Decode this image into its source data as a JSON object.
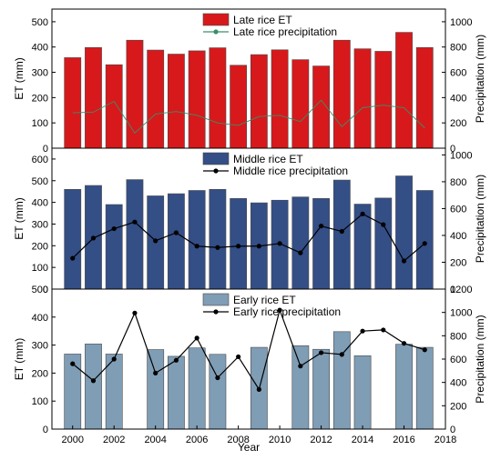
{
  "chart_data": [
    {
      "type": "bar+line",
      "panel": "late",
      "x": [
        2000,
        2001,
        2002,
        2003,
        2004,
        2005,
        2006,
        2007,
        2008,
        2009,
        2010,
        2011,
        2012,
        2013,
        2014,
        2015,
        2016,
        2017
      ],
      "series": [
        {
          "name": "Late rice ET",
          "kind": "bar",
          "axis": "left",
          "values": [
            358,
            398,
            330,
            427,
            388,
            372,
            385,
            397,
            328,
            370,
            389,
            350,
            325,
            427,
            393,
            383,
            458,
            398
          ],
          "color": "#d7191c"
        },
        {
          "name": "Late rice precipitation",
          "kind": "line",
          "axis": "right",
          "values": [
            280,
            285,
            370,
            120,
            270,
            290,
            260,
            200,
            180,
            250,
            260,
            210,
            380,
            170,
            320,
            340,
            320,
            160
          ],
          "color": "#3a8f6a"
        }
      ],
      "ylabel": "ET (mm)",
      "ylim": [
        0,
        550
      ],
      "yticks": [
        0,
        100,
        200,
        300,
        400,
        500
      ],
      "y2label": "Precipitation (mm)",
      "y2lim": [
        0,
        1100
      ],
      "y2ticks": [
        0,
        200,
        400,
        600,
        800,
        1000
      ],
      "legend": "top-center"
    },
    {
      "type": "bar+line",
      "panel": "middle",
      "x": [
        2000,
        2001,
        2002,
        2003,
        2004,
        2005,
        2006,
        2007,
        2008,
        2009,
        2010,
        2011,
        2012,
        2013,
        2014,
        2015,
        2016,
        2017
      ],
      "series": [
        {
          "name": "Middle rice ET",
          "kind": "bar",
          "axis": "left",
          "values": [
            460,
            478,
            390,
            505,
            430,
            440,
            455,
            460,
            418,
            398,
            410,
            425,
            418,
            503,
            392,
            420,
            522,
            455
          ],
          "color": "#344e86"
        },
        {
          "name": "Middle rice precipitation",
          "kind": "line",
          "axis": "right",
          "values": [
            230,
            380,
            450,
            500,
            360,
            420,
            320,
            310,
            320,
            320,
            340,
            270,
            470,
            430,
            560,
            480,
            210,
            340
          ],
          "color": "#000000"
        }
      ],
      "ylabel": "ET (mm)",
      "ylim": [
        0,
        650
      ],
      "yticks": [
        0,
        100,
        200,
        300,
        400,
        500,
        600
      ],
      "y2label": "Precipitation (mm)",
      "y2lim": [
        0,
        1050
      ],
      "y2ticks": [
        0,
        200,
        400,
        600,
        800,
        1000
      ],
      "legend": "top-center"
    },
    {
      "type": "bar+line",
      "panel": "early",
      "x": [
        2000,
        2001,
        2002,
        2003,
        2004,
        2005,
        2006,
        2007,
        2008,
        2009,
        2010,
        2011,
        2012,
        2013,
        2014,
        2015,
        2016,
        2017
      ],
      "series": [
        {
          "name": "Early rice ET",
          "kind": "bar",
          "axis": "left",
          "values": [
            268,
            304,
            268,
            null,
            284,
            260,
            290,
            267,
            null,
            292,
            null,
            298,
            285,
            348,
            262,
            null,
            303,
            292
          ],
          "color": "#7f9db5"
        },
        {
          "name": "Early rice precipitation",
          "kind": "line",
          "axis": "right",
          "values": [
            560,
            415,
            600,
            995,
            480,
            590,
            780,
            440,
            620,
            340,
            1020,
            540,
            655,
            640,
            840,
            850,
            735,
            680
          ],
          "color": "#000000"
        }
      ],
      "ylabel": "ET (mm)",
      "ylim": [
        0,
        500
      ],
      "yticks": [
        0,
        100,
        200,
        300,
        400,
        500
      ],
      "y2label": "Precipitation (mm)",
      "y2lim": [
        0,
        1200
      ],
      "y2ticks": [
        0,
        200,
        400,
        600,
        800,
        1000,
        1200
      ],
      "xlabel": "Year",
      "xlim": [
        1999,
        2018
      ],
      "xticks": [
        2000,
        2002,
        2004,
        2006,
        2008,
        2010,
        2012,
        2014,
        2016,
        2018
      ],
      "legend": "top-center"
    }
  ]
}
